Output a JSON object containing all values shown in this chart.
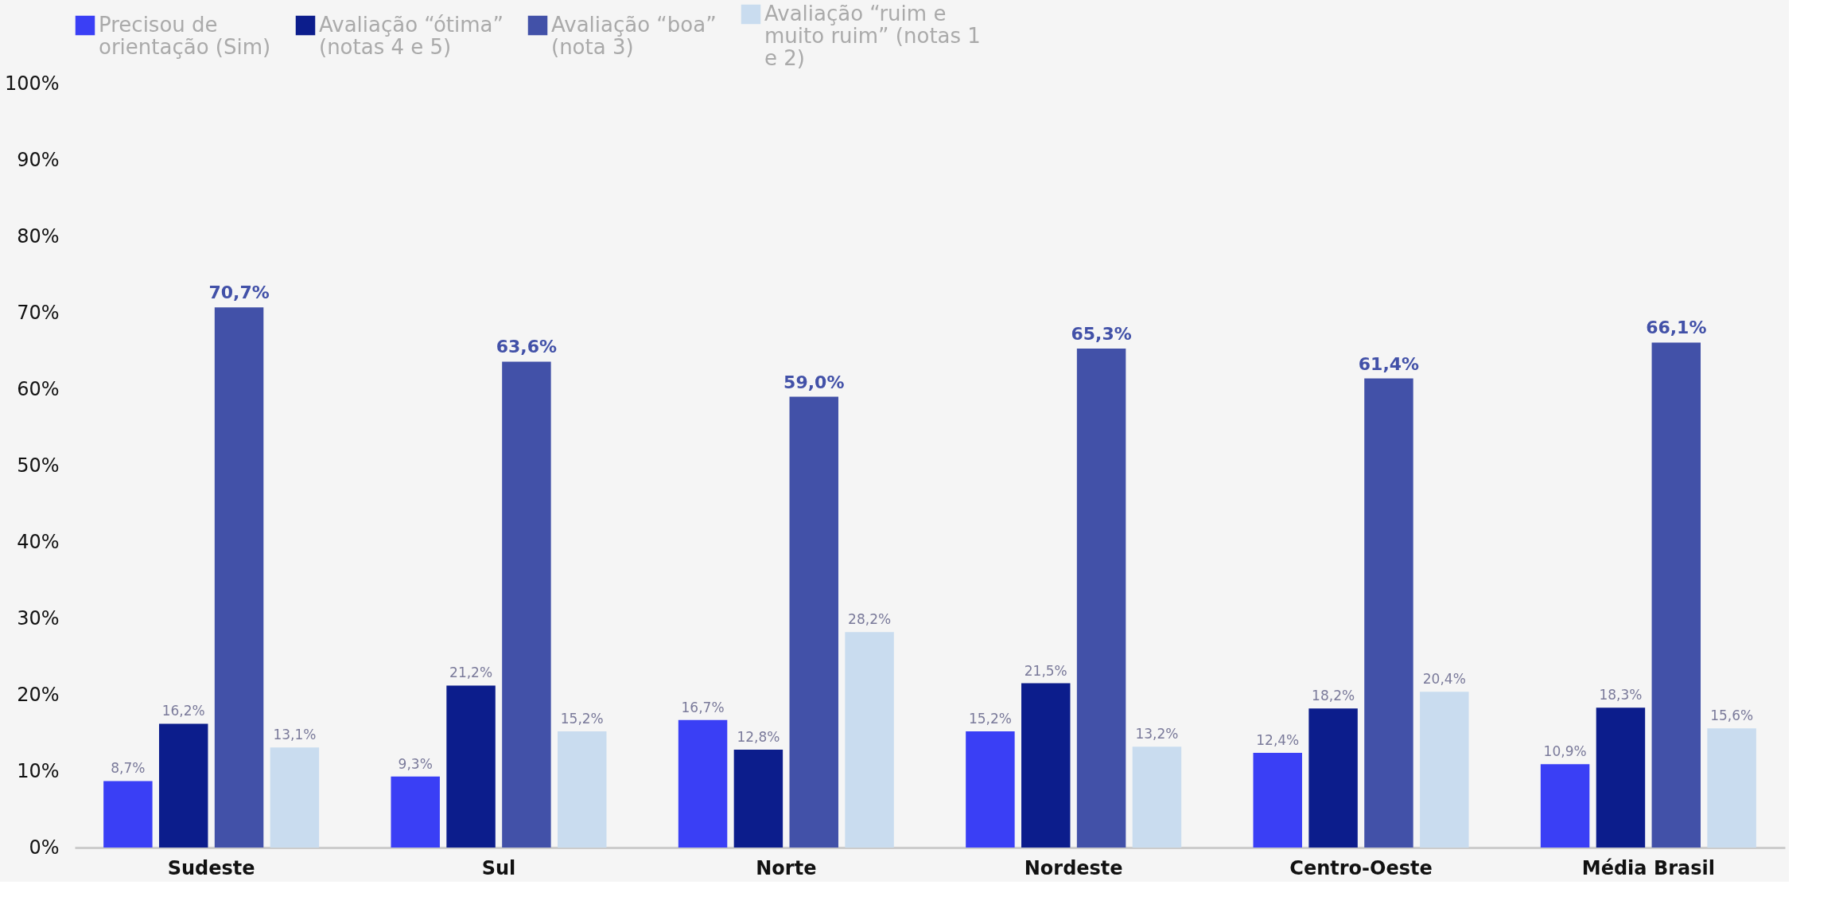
{
  "chart_data": {
    "type": "bar",
    "categories": [
      "Sudeste",
      "Sul",
      "Norte",
      "Nordeste",
      "Centro-Oeste",
      "Média Brasil"
    ],
    "series": [
      {
        "name": "Precisou de orientação (Sim)",
        "color": "#3a3ff5",
        "values": [
          8.7,
          9.3,
          16.7,
          15.2,
          12.4,
          10.9
        ],
        "value_labels": [
          "8,7%",
          "9,3%",
          "16,7%",
          "15,2%",
          "12,4%",
          "10,9%"
        ]
      },
      {
        "name": "Avaliação “ótima” (notas 4 e 5)",
        "color": "#0c1d8c",
        "values": [
          16.2,
          21.2,
          12.8,
          21.5,
          18.2,
          18.3
        ],
        "value_labels": [
          "16,2%",
          "21,2%",
          "12,8%",
          "21,5%",
          "18,2%",
          "18,3%"
        ]
      },
      {
        "name": "Avaliação “boa” (nota 3)",
        "color": "#4251a8",
        "values": [
          70.7,
          63.6,
          59.0,
          65.3,
          61.4,
          66.1
        ],
        "value_labels": [
          "70,7%",
          "63,6%",
          "59,0%",
          "65,3%",
          "61,4%",
          "66,1%"
        ]
      },
      {
        "name": "Avaliação “ruim e muito ruim” (notas 1 e 2)",
        "color": "#c9dcef",
        "values": [
          13.1,
          15.2,
          28.2,
          13.2,
          20.4,
          15.6
        ],
        "value_labels": [
          "13,1%",
          "15,2%",
          "28,2%",
          "13,2%",
          "20,4%",
          "15,6%"
        ]
      }
    ],
    "ylim": [
      0,
      100
    ],
    "yticks": [
      {
        "value": 0,
        "label": "0%"
      },
      {
        "value": 10,
        "label": "10%"
      },
      {
        "value": 20,
        "label": "20%"
      },
      {
        "value": 30,
        "label": "30%"
      },
      {
        "value": 40,
        "label": "40%"
      },
      {
        "value": 50,
        "label": "50%"
      },
      {
        "value": 60,
        "label": "60%"
      },
      {
        "value": 70,
        "label": "70%"
      },
      {
        "value": 80,
        "label": "80%"
      },
      {
        "value": 90,
        "label": "90%"
      },
      {
        "value": 100,
        "label": "100%"
      }
    ],
    "grid": false,
    "legend": "top"
  }
}
